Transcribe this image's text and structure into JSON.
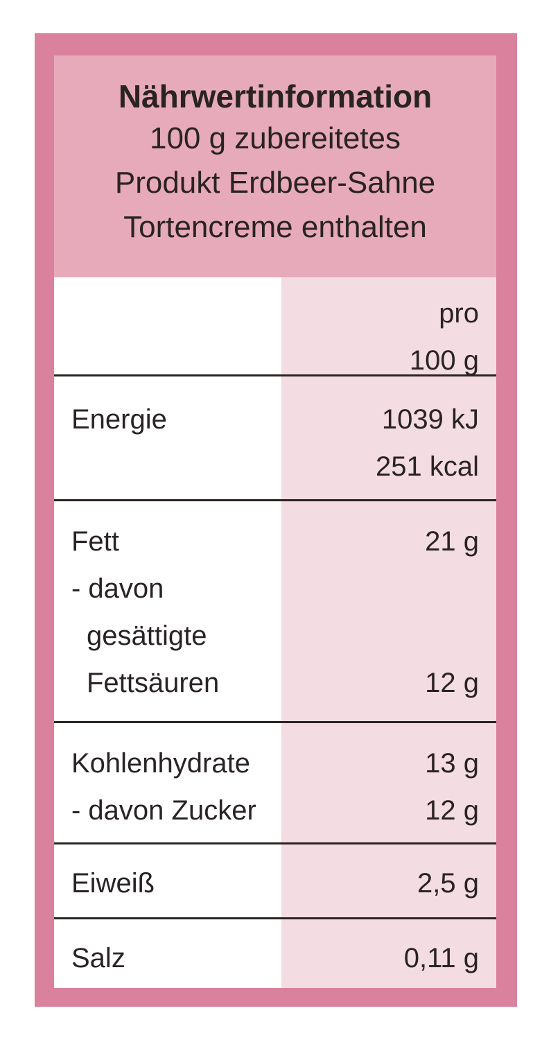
{
  "header": {
    "title": "Nährwertinformation",
    "subtitle": [
      "100 g zubereitetes",
      "Produkt Erdbeer-Sahne",
      "Tortencreme enthalten"
    ]
  },
  "table": {
    "rows": [
      {
        "lines": [
          {
            "value": [
              "pro",
              "100 g"
            ]
          }
        ]
      },
      {
        "lines": [
          {
            "label": [
              "Energie"
            ],
            "value": [
              "1039 kJ",
              "251 kcal"
            ]
          }
        ]
      },
      {
        "lines": [
          {
            "label": [
              "Fett"
            ],
            "value": [
              "21 g"
            ]
          },
          {
            "label": [
              "- davon",
              "gesättigte",
              "Fettsäuren"
            ],
            "value": [
              "12 g"
            ]
          }
        ]
      },
      {
        "lines": [
          {
            "label": [
              "Kohlenhydrate"
            ],
            "value": [
              "13 g"
            ]
          },
          {
            "label": [
              "- davon Zucker"
            ],
            "value": [
              "12 g"
            ]
          }
        ]
      },
      {
        "lines": [
          {
            "label": [
              "Eiweiß"
            ],
            "value": [
              "2,5 g"
            ]
          }
        ]
      },
      {
        "lines": [
          {
            "label": [
              "Salz"
            ],
            "value": [
              "0,11 g"
            ]
          }
        ]
      }
    ]
  }
}
